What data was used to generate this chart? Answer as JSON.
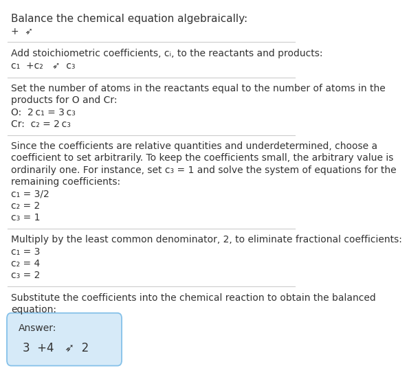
{
  "title": "Balance the chemical equation algebraically:",
  "line1_plain": "+  ➶",
  "section1_header": "Add stoichiometric coefficients, cᵢ, to the reactants and products:",
  "section1_eq": "c₁  +c₂   ➶  c₃",
  "section2_header_1": "Set the number of atoms in the reactants equal to the number of atoms in the",
  "section2_header_2": "products for O and Cr:",
  "section2_O": "O:  2 c₁ = 3 c₃",
  "section2_Cr": "Cr:  c₂ = 2 c₃",
  "section3_header_1": "Since the coefficients are relative quantities and underdetermined, choose a",
  "section3_header_2": "coefficient to set arbitrarily. To keep the coefficients small, the arbitrary value is",
  "section3_header_3": "ordinarily one. For instance, set c₃ = 1 and solve the system of equations for the",
  "section3_header_4": "remaining coefficients:",
  "section3_c1": "c₁ = 3/2",
  "section3_c2": "c₂ = 2",
  "section3_c3": "c₃ = 1",
  "section4_header": "Multiply by the least common denominator, 2, to eliminate fractional coefficients:",
  "section4_c1": "c₁ = 3",
  "section4_c2": "c₂ = 4",
  "section4_c3": "c₃ = 2",
  "section5_header_1": "Substitute the coefficients into the chemical reaction to obtain the balanced",
  "section5_header_2": "equation:",
  "answer_label": "Answer:",
  "answer_eq": "3  +4   ➶  2",
  "bg_color": "#ffffff",
  "text_color": "#333333",
  "answer_box_facecolor": "#d6eaf8",
  "answer_box_edgecolor": "#85c1e9",
  "separator_color": "#cccccc",
  "font_size_title": 11,
  "font_size_body": 10,
  "font_size_math": 10,
  "font_size_answer": 12
}
